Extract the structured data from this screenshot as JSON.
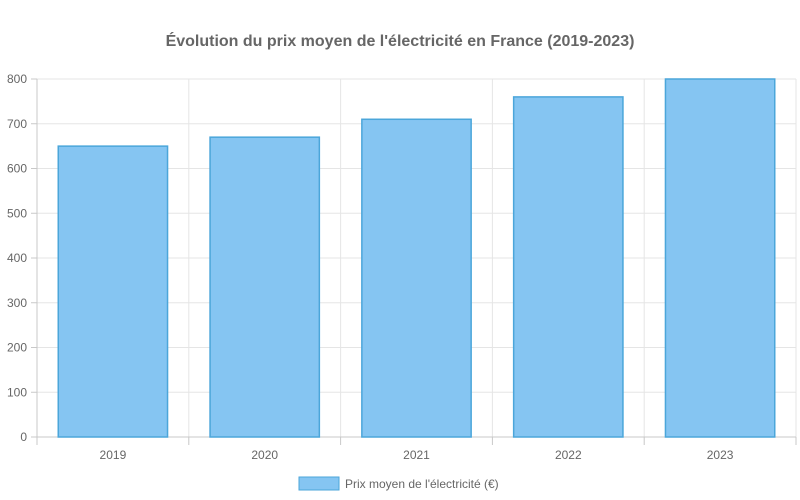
{
  "chart_data": {
    "type": "bar",
    "title": "Évolution du prix moyen de l'électricité en France (2019-2023)",
    "categories": [
      "2019",
      "2020",
      "2021",
      "2022",
      "2023"
    ],
    "series": [
      {
        "name": "Prix moyen de l'électricité (€)",
        "values": [
          650,
          670,
          710,
          760,
          800
        ],
        "color": "#85C5F2",
        "border_color": "#4BA6DA"
      }
    ],
    "ylim": [
      0,
      800
    ],
    "yticks": [
      0,
      100,
      200,
      300,
      400,
      500,
      600,
      700,
      800
    ],
    "grid": true,
    "legend_position": "bottom"
  }
}
